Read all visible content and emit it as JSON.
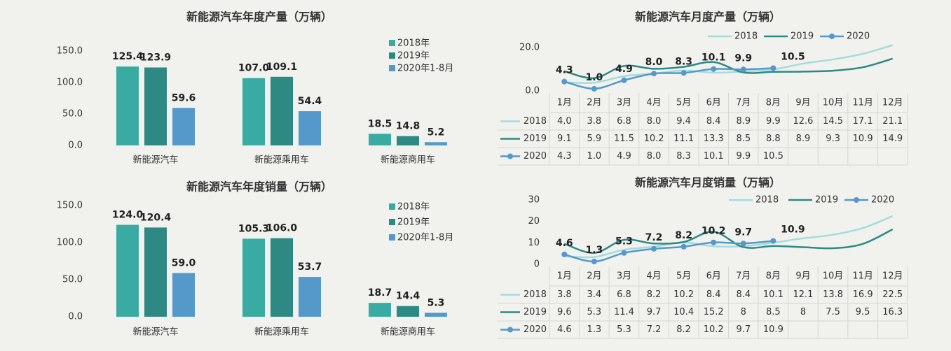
{
  "chart_data": [
    {
      "type": "bar",
      "title": "新能源汽车年度产量（万辆）",
      "categories": [
        "新能源汽车",
        "新能源乘用车",
        "新能源商用车"
      ],
      "series": [
        {
          "name": "2018年",
          "color": "#3aaba3",
          "values": [
            125.4,
            107.0,
            18.5
          ],
          "value_labels": [
            "125.4",
            "107.0",
            "18.5"
          ]
        },
        {
          "name": "2019年",
          "color": "#2e8985",
          "values": [
            123.9,
            109.1,
            14.8
          ],
          "value_labels": [
            "123.9",
            "109.1",
            "14.8"
          ]
        },
        {
          "name": "2020年1-8月",
          "color": "#5598ca",
          "values": [
            59.6,
            54.4,
            5.2
          ],
          "value_labels": [
            "59.6",
            "54.4",
            "5.2"
          ]
        }
      ],
      "ylim": [
        0,
        150
      ],
      "yticks": [
        {
          "value": 0,
          "label": "0.0"
        },
        {
          "value": 50,
          "label": "50.0"
        },
        {
          "value": 100,
          "label": "100.0"
        },
        {
          "value": 150,
          "label": "150.0"
        }
      ],
      "legend": "right"
    },
    {
      "type": "bar",
      "title": "新能源汽车年度销量（万辆）",
      "categories": [
        "新能源汽车",
        "新能源乘用车",
        "新能源商用车"
      ],
      "series": [
        {
          "name": "2018年",
          "color": "#3aaba3",
          "values": [
            124.0,
            105.3,
            18.7
          ],
          "value_labels": [
            "124.0",
            "105.3",
            "18.7"
          ]
        },
        {
          "name": "2019年",
          "color": "#2e8985",
          "values": [
            120.4,
            106.0,
            14.4
          ],
          "value_labels": [
            "120.4",
            "106.0",
            "14.4"
          ]
        },
        {
          "name": "2020年1-8月",
          "color": "#5598ca",
          "values": [
            59.0,
            53.7,
            5.3
          ],
          "value_labels": [
            "59.0",
            "53.7",
            "5.3"
          ]
        }
      ],
      "ylim": [
        0,
        150
      ],
      "yticks": [
        {
          "value": 0,
          "label": "0.0"
        },
        {
          "value": 50,
          "label": "50.0"
        },
        {
          "value": 100,
          "label": "100.0"
        },
        {
          "value": 150,
          "label": "150.0"
        }
      ],
      "legend": "right"
    },
    {
      "type": "line",
      "title": "新能源汽车月度产量（万辆）",
      "categories": [
        "1月",
        "2月",
        "3月",
        "4月",
        "5月",
        "6月",
        "7月",
        "8月",
        "9月",
        "10月",
        "11月",
        "12月"
      ],
      "series": [
        {
          "name": "2018",
          "color": "#a3dcdc",
          "values": [
            4.0,
            3.8,
            6.8,
            8.0,
            9.4,
            8.4,
            8.9,
            9.9,
            12.6,
            14.5,
            17.1,
            21.1
          ],
          "value_labels": [
            "4.0",
            "3.8",
            "6.8",
            "8.0",
            "9.4",
            "8.4",
            "8.9",
            "9.9",
            "12.6",
            "14.5",
            "17.1",
            "21.1"
          ]
        },
        {
          "name": "2019",
          "color": "#2e8985",
          "values": [
            9.1,
            5.9,
            11.5,
            10.2,
            11.1,
            13.3,
            8.5,
            8.8,
            8.9,
            9.3,
            10.9,
            14.9
          ]
        },
        {
          "name": "2020",
          "color": "#5598ca",
          "markers": true,
          "data_labels": true,
          "values": [
            4.3,
            1.0,
            4.9,
            8.0,
            8.3,
            10.1,
            9.9,
            10.5,
            null,
            null,
            null,
            null
          ],
          "value_labels": [
            "4.3",
            "1.0",
            "4.9",
            "8.0",
            "8.3",
            "10.1",
            "9.9",
            "10.5",
            null,
            null,
            null,
            null
          ]
        }
      ],
      "ylim": [
        0,
        22
      ],
      "yticks": [
        {
          "value": 0,
          "label": "0.0"
        },
        {
          "value": 20,
          "label": "20.0"
        }
      ],
      "legend": "top",
      "data_table": true
    },
    {
      "type": "line",
      "title": "新能源汽车月度销量（万辆）",
      "categories": [
        "1月",
        "2月",
        "3月",
        "4月",
        "5月",
        "6月",
        "7月",
        "8月",
        "9月",
        "10月",
        "11月",
        "12月"
      ],
      "series": [
        {
          "name": "2018",
          "color": "#a3dcdc",
          "values": [
            3.8,
            3.4,
            6.8,
            8.2,
            10.2,
            8.4,
            8.4,
            10.1,
            12.1,
            13.8,
            16.9,
            22.5
          ]
        },
        {
          "name": "2019",
          "color": "#2e8985",
          "values": [
            9.6,
            5.3,
            11.4,
            9.7,
            10.4,
            15.2,
            8,
            8.5,
            8,
            7.5,
            9.5,
            16.3
          ]
        },
        {
          "name": "2020",
          "color": "#5598ca",
          "markers": true,
          "data_labels": true,
          "values": [
            4.6,
            1.3,
            5.3,
            7.2,
            8.2,
            10.2,
            9.7,
            10.9,
            null,
            null,
            null,
            null
          ]
        }
      ],
      "ylim": [
        0,
        30
      ],
      "yticks": [
        0,
        10,
        20,
        30
      ],
      "legend": "top",
      "data_table": true
    }
  ]
}
